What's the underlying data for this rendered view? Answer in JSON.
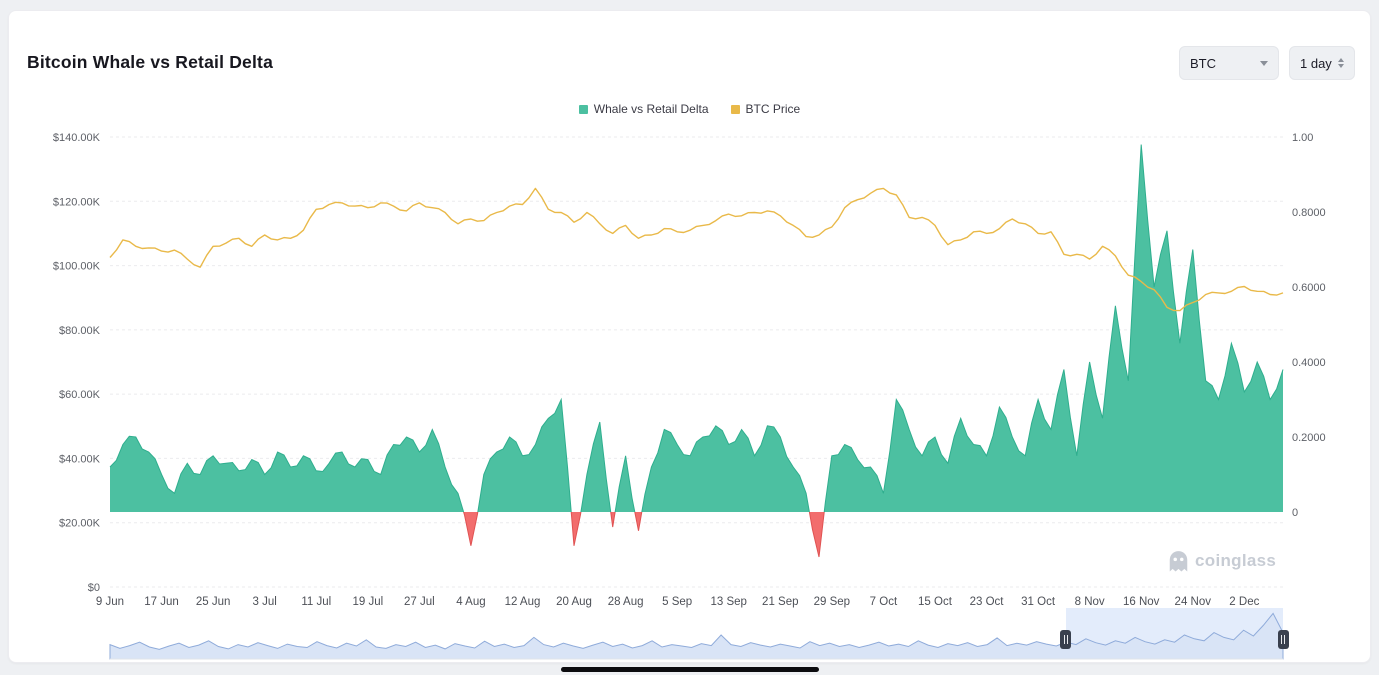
{
  "page": {
    "title": "Bitcoin Whale vs Retail Delta"
  },
  "controls": {
    "symbol_value": "BTC",
    "interval_value": "1 day"
  },
  "legend": {
    "items": [
      {
        "label": "Whale vs Retail Delta",
        "color": "#4cc0a1"
      },
      {
        "label": "BTC Price",
        "color": "#e9b949"
      }
    ]
  },
  "watermark": {
    "text": "coinglass"
  },
  "chart_data": {
    "type": "area",
    "title": "Bitcoin Whale vs Retail Delta",
    "sample_interval_days": 2,
    "start_date_label": "9 Jun",
    "x_tick_labels": [
      "9 Jun",
      "17 Jun",
      "25 Jun",
      "3 Jul",
      "11 Jul",
      "19 Jul",
      "27 Jul",
      "4 Aug",
      "12 Aug",
      "20 Aug",
      "28 Aug",
      "5 Sep",
      "13 Sep",
      "21 Sep",
      "29 Sep",
      "7 Oct",
      "15 Oct",
      "23 Oct",
      "31 Oct",
      "8 Nov",
      "16 Nov",
      "24 Nov",
      "2 Dec"
    ],
    "left_axis": {
      "ticks": [
        "$140.00K",
        "$120.00K",
        "$100.00K",
        "$80.00K",
        "$60.00K",
        "$40.00K",
        "$20.00K",
        "$0"
      ],
      "min": 0,
      "max": 140000
    },
    "right_axis": {
      "ticks": [
        "1.00",
        "0.8000",
        "0.6000",
        "0.4000",
        "0.2000",
        "0"
      ],
      "min": 0,
      "max": 1.0
    },
    "grid": "dashed-horizontal",
    "legend_position": "top-center",
    "series": [
      {
        "name": "Whale vs Retail Delta",
        "type": "area",
        "axis": "right",
        "color_positive": "#4cc0a1",
        "stroke_positive": "#2fae8e",
        "color_negative": "#f26d6d",
        "stroke_negative": "#e05252",
        "values": [
          0.12,
          0.18,
          0.2,
          0.16,
          0.1,
          0.05,
          0.13,
          0.1,
          0.15,
          0.13,
          0.11,
          0.14,
          0.1,
          0.16,
          0.12,
          0.15,
          0.11,
          0.13,
          0.16,
          0.12,
          0.14,
          0.1,
          0.18,
          0.2,
          0.16,
          0.22,
          0.12,
          0.05,
          -0.09,
          0.1,
          0.16,
          0.2,
          0.15,
          0.18,
          0.25,
          0.3,
          -0.09,
          0.1,
          0.24,
          -0.04,
          0.15,
          -0.05,
          0.12,
          0.22,
          0.18,
          0.15,
          0.2,
          0.23,
          0.18,
          0.22,
          0.15,
          0.23,
          0.2,
          0.12,
          0.05,
          -0.12,
          0.15,
          0.18,
          0.14,
          0.12,
          0.05,
          0.3,
          0.22,
          0.15,
          0.2,
          0.13,
          0.25,
          0.18,
          0.15,
          0.28,
          0.2,
          0.15,
          0.3,
          0.22,
          0.38,
          0.15,
          0.4,
          0.25,
          0.55,
          0.35,
          0.98,
          0.6,
          0.75,
          0.45,
          0.7,
          0.35,
          0.3,
          0.45,
          0.32,
          0.4,
          0.3,
          0.38
        ]
      },
      {
        "name": "BTC Price",
        "type": "line",
        "axis": "left",
        "color": "#e9b949",
        "values": [
          102500,
          108000,
          106000,
          105500,
          104500,
          104800,
          102000,
          99500,
          106000,
          107000,
          108500,
          106000,
          109500,
          108000,
          108500,
          111000,
          117500,
          119000,
          119500,
          118500,
          118000,
          119500,
          118500,
          117000,
          119500,
          118000,
          116500,
          113000,
          114500,
          114000,
          116500,
          118500,
          119000,
          124000,
          117500,
          116500,
          113500,
          116500,
          113000,
          110000,
          112500,
          108500,
          109500,
          111500,
          110500,
          111000,
          112500,
          114000,
          116000,
          115500,
          116500,
          117000,
          115500,
          112500,
          109000,
          109500,
          112000,
          118000,
          120500,
          122500,
          124000,
          122000,
          115000,
          115000,
          112500,
          106500,
          108000,
          110500,
          110000,
          111500,
          114500,
          113000,
          110000,
          110500,
          103500,
          103500,
          102000,
          106000,
          103000,
          97000,
          95000,
          92500,
          87000,
          86000,
          88500,
          91000,
          91500,
          92000,
          93500,
          92000,
          91000,
          91500
        ]
      }
    ],
    "navigator": {
      "selection_start_frac": 0.815,
      "selection_end_frac": 1.0,
      "values": [
        0.3,
        0.22,
        0.28,
        0.35,
        0.25,
        0.2,
        0.27,
        0.33,
        0.24,
        0.29,
        0.38,
        0.26,
        0.21,
        0.3,
        0.25,
        0.34,
        0.28,
        0.22,
        0.31,
        0.26,
        0.24,
        0.36,
        0.28,
        0.23,
        0.33,
        0.27,
        0.4,
        0.25,
        0.22,
        0.3,
        0.26,
        0.35,
        0.24,
        0.29,
        0.21,
        0.32,
        0.27,
        0.23,
        0.37,
        0.26,
        0.31,
        0.24,
        0.28,
        0.45,
        0.3,
        0.25,
        0.33,
        0.27,
        0.22,
        0.29,
        0.35,
        0.26,
        0.31,
        0.23,
        0.28,
        0.38,
        0.25,
        0.3,
        0.27,
        0.24,
        0.32,
        0.28,
        0.5,
        0.3,
        0.26,
        0.34,
        0.29,
        0.25,
        0.31,
        0.27,
        0.23,
        0.36,
        0.28,
        0.33,
        0.26,
        0.3,
        0.24,
        0.29,
        0.35,
        0.27,
        0.31,
        0.26,
        0.38,
        0.29,
        0.24,
        0.32,
        0.28,
        0.34,
        0.26,
        0.3,
        0.44,
        0.28,
        0.33,
        0.29,
        0.36,
        0.31,
        0.27,
        0.35,
        0.3,
        0.42,
        0.34,
        0.29,
        0.38,
        0.33,
        0.45,
        0.36,
        0.31,
        0.4,
        0.35,
        0.5,
        0.42,
        0.38,
        0.55,
        0.45,
        0.4,
        0.6,
        0.48,
        0.7,
        0.95,
        0.55
      ]
    }
  }
}
